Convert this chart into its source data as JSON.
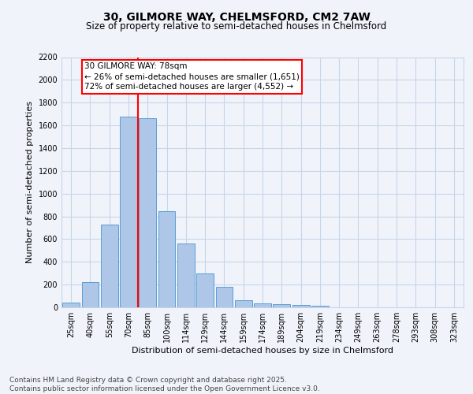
{
  "title1": "30, GILMORE WAY, CHELMSFORD, CM2 7AW",
  "title2": "Size of property relative to semi-detached houses in Chelmsford",
  "xlabel": "Distribution of semi-detached houses by size in Chelmsford",
  "ylabel": "Number of semi-detached properties",
  "categories": [
    "25sqm",
    "40sqm",
    "55sqm",
    "70sqm",
    "85sqm",
    "100sqm",
    "114sqm",
    "129sqm",
    "144sqm",
    "159sqm",
    "174sqm",
    "189sqm",
    "204sqm",
    "219sqm",
    "234sqm",
    "249sqm",
    "263sqm",
    "278sqm",
    "293sqm",
    "308sqm",
    "323sqm"
  ],
  "values": [
    40,
    225,
    730,
    1680,
    1660,
    845,
    560,
    300,
    180,
    65,
    38,
    25,
    18,
    12,
    2,
    0,
    0,
    0,
    0,
    0,
    0
  ],
  "bar_color": "#aec6e8",
  "bar_edge_color": "#5a9fd4",
  "vline_color": "red",
  "annotation_title": "30 GILMORE WAY: 78sqm",
  "annotation_line1": "← 26% of semi-detached houses are smaller (1,651)",
  "annotation_line2": "72% of semi-detached houses are larger (4,552) →",
  "annotation_box_color": "white",
  "annotation_box_edgecolor": "red",
  "ylim": [
    0,
    2200
  ],
  "yticks": [
    0,
    200,
    400,
    600,
    800,
    1000,
    1200,
    1400,
    1600,
    1800,
    2000,
    2200
  ],
  "footnote1": "Contains HM Land Registry data © Crown copyright and database right 2025.",
  "footnote2": "Contains public sector information licensed under the Open Government Licence v3.0.",
  "bg_color": "#f0f4fa",
  "plot_bg_color": "#f0f4fa",
  "grid_color": "#c8d4e8",
  "title1_fontsize": 10,
  "title2_fontsize": 8.5,
  "tick_fontsize": 7,
  "ylabel_fontsize": 8,
  "xlabel_fontsize": 8,
  "annotation_fontsize": 7.5,
  "footnote_fontsize": 6.5
}
